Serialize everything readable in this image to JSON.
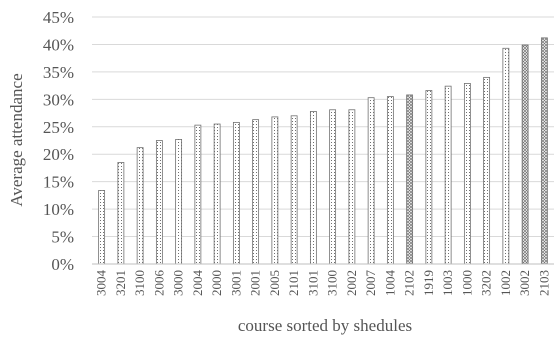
{
  "chart_data": {
    "type": "bar",
    "title": "",
    "xlabel": "course sorted by shedules",
    "ylabel": "Average attendance",
    "ylim": [
      0,
      45
    ],
    "yticks": [
      "0%",
      "5%",
      "10%",
      "15%",
      "20%",
      "25%",
      "30%",
      "35%",
      "40%",
      "45%"
    ],
    "grid": "horizontal",
    "legend": "none",
    "categories": [
      "3004",
      "3201",
      "3100",
      "2006",
      "3000",
      "2004",
      "2000",
      "3001",
      "2001",
      "2005",
      "2101",
      "3101",
      "3100",
      "2002",
      "2007",
      "1004",
      "2102",
      "1919",
      "1003",
      "1000",
      "3202",
      "1002",
      "3002",
      "2103"
    ],
    "values": [
      13.4,
      18.5,
      21.2,
      22.5,
      22.7,
      25.3,
      25.5,
      25.8,
      26.3,
      26.8,
      27.0,
      27.8,
      28.1,
      28.1,
      30.3,
      30.5,
      30.8,
      31.6,
      32.4,
      32.9,
      34.0,
      39.3,
      39.9,
      41.2
    ],
    "bar_fill_pattern": [
      "dots",
      "dots",
      "dots",
      "dots",
      "dots",
      "dots",
      "dots",
      "dots",
      "dots",
      "dots",
      "dots",
      "dots",
      "dots",
      "dots",
      "dots",
      "dots",
      "cross",
      "dots",
      "dots",
      "dots",
      "dots",
      "dots",
      "cross",
      "cross"
    ],
    "colors": {
      "bar_stroke": "#707070",
      "grid": "#d9d9d9",
      "text": "#555555",
      "axis": "#bfbfbf"
    }
  }
}
